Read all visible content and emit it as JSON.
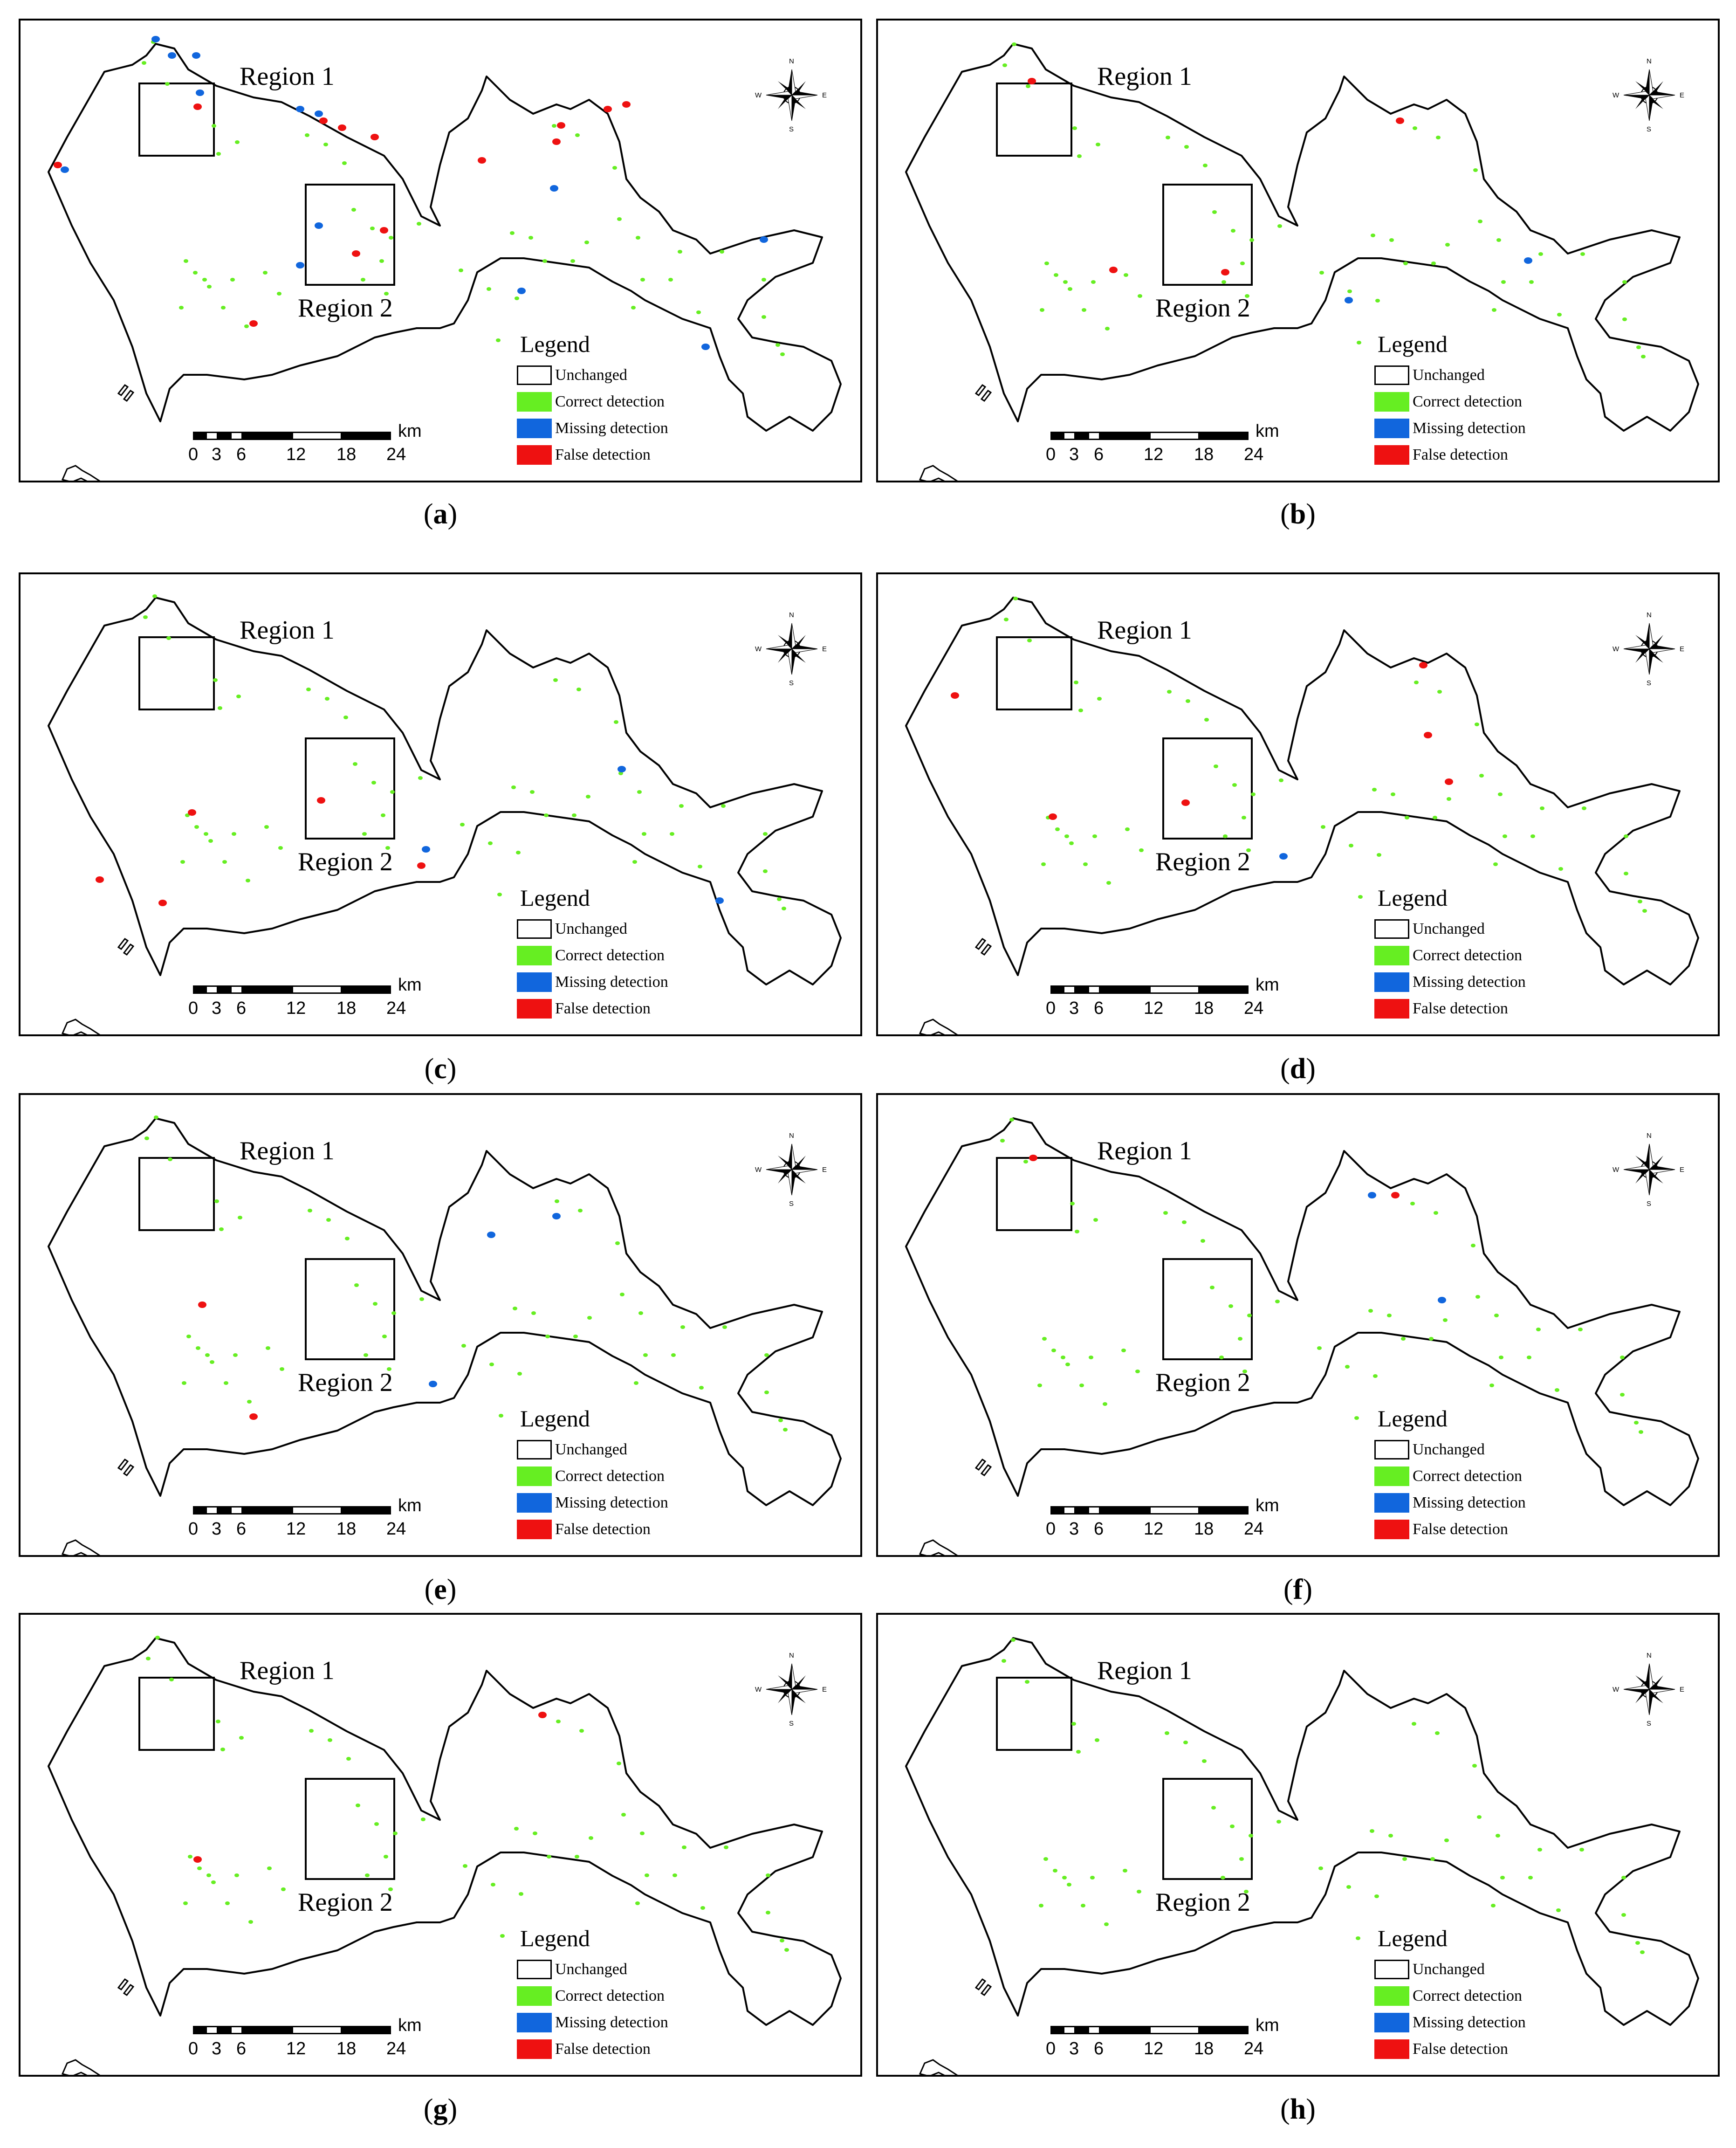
{
  "panels": [
    {
      "caption_letter": "a",
      "region1": "Region 1",
      "region2": "Region 2"
    },
    {
      "caption_letter": "b",
      "region1": "Region 1",
      "region2": "Region 2"
    },
    {
      "caption_letter": "c",
      "region1": "Region 1",
      "region2": "Region 2"
    },
    {
      "caption_letter": "d",
      "region1": "Region 1",
      "region2": "Region 2"
    },
    {
      "caption_letter": "e",
      "region1": "Region 1",
      "region2": "Region 2"
    },
    {
      "caption_letter": "f",
      "region1": "Region 1",
      "region2": "Region 2"
    },
    {
      "caption_letter": "g",
      "region1": "Region 1",
      "region2": "Region 2"
    },
    {
      "caption_letter": "h",
      "region1": "Region 1",
      "region2": "Region 2"
    }
  ],
  "legend": {
    "title": "Legend",
    "items": [
      {
        "label": "Unchanged",
        "color": "#ffffff"
      },
      {
        "label": "Correct detection",
        "color": "#66ee22"
      },
      {
        "label": "Missing detection",
        "color": "#1166dd"
      },
      {
        "label": "False detection",
        "color": "#ee1111"
      }
    ]
  },
  "scale": {
    "ticks": [
      "0",
      "3",
      "6",
      "12",
      "18",
      "24"
    ],
    "unit": "km"
  },
  "compass": {
    "n": "N",
    "s": "S",
    "e": "E",
    "w": "W"
  }
}
